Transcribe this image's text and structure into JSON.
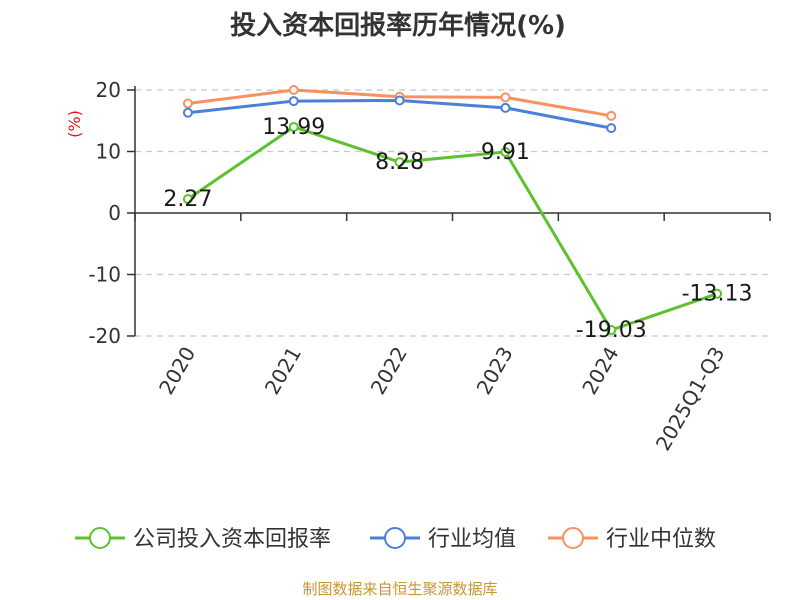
{
  "chart_data": {
    "type": "line",
    "title": "投入资本回报率历年情况(%)",
    "ylabel": "(%)",
    "xlabel": "",
    "ylim": [
      -20,
      20
    ],
    "yticks": [
      20,
      10,
      0,
      -10,
      -20
    ],
    "categories": [
      "2020",
      "2021",
      "2022",
      "2023",
      "2024",
      "2025Q1-Q3"
    ],
    "grid": true,
    "legend_position": "bottom",
    "series": [
      {
        "name": "公司投入资本回报率",
        "color": "#5cc22f",
        "values": [
          2.27,
          13.99,
          8.28,
          9.91,
          -19.03,
          -13.13
        ],
        "labels": [
          "2.27",
          "13.99",
          "8.28",
          "9.91",
          "-19.03",
          "-13.13"
        ]
      },
      {
        "name": "行业均值",
        "color": "#4a7fdc",
        "values": [
          16.3,
          18.2,
          18.3,
          17.1,
          13.8,
          null
        ]
      },
      {
        "name": "行业中位数",
        "color": "#f79161",
        "values": [
          17.8,
          20.0,
          18.9,
          18.8,
          15.8,
          null
        ]
      }
    ],
    "source": "制图数据来自恒生聚源数据库",
    "colors": {
      "axis": "#333333",
      "grid": "#c8c8c8",
      "ylabel": "#e01515",
      "source": "#c89632"
    }
  }
}
